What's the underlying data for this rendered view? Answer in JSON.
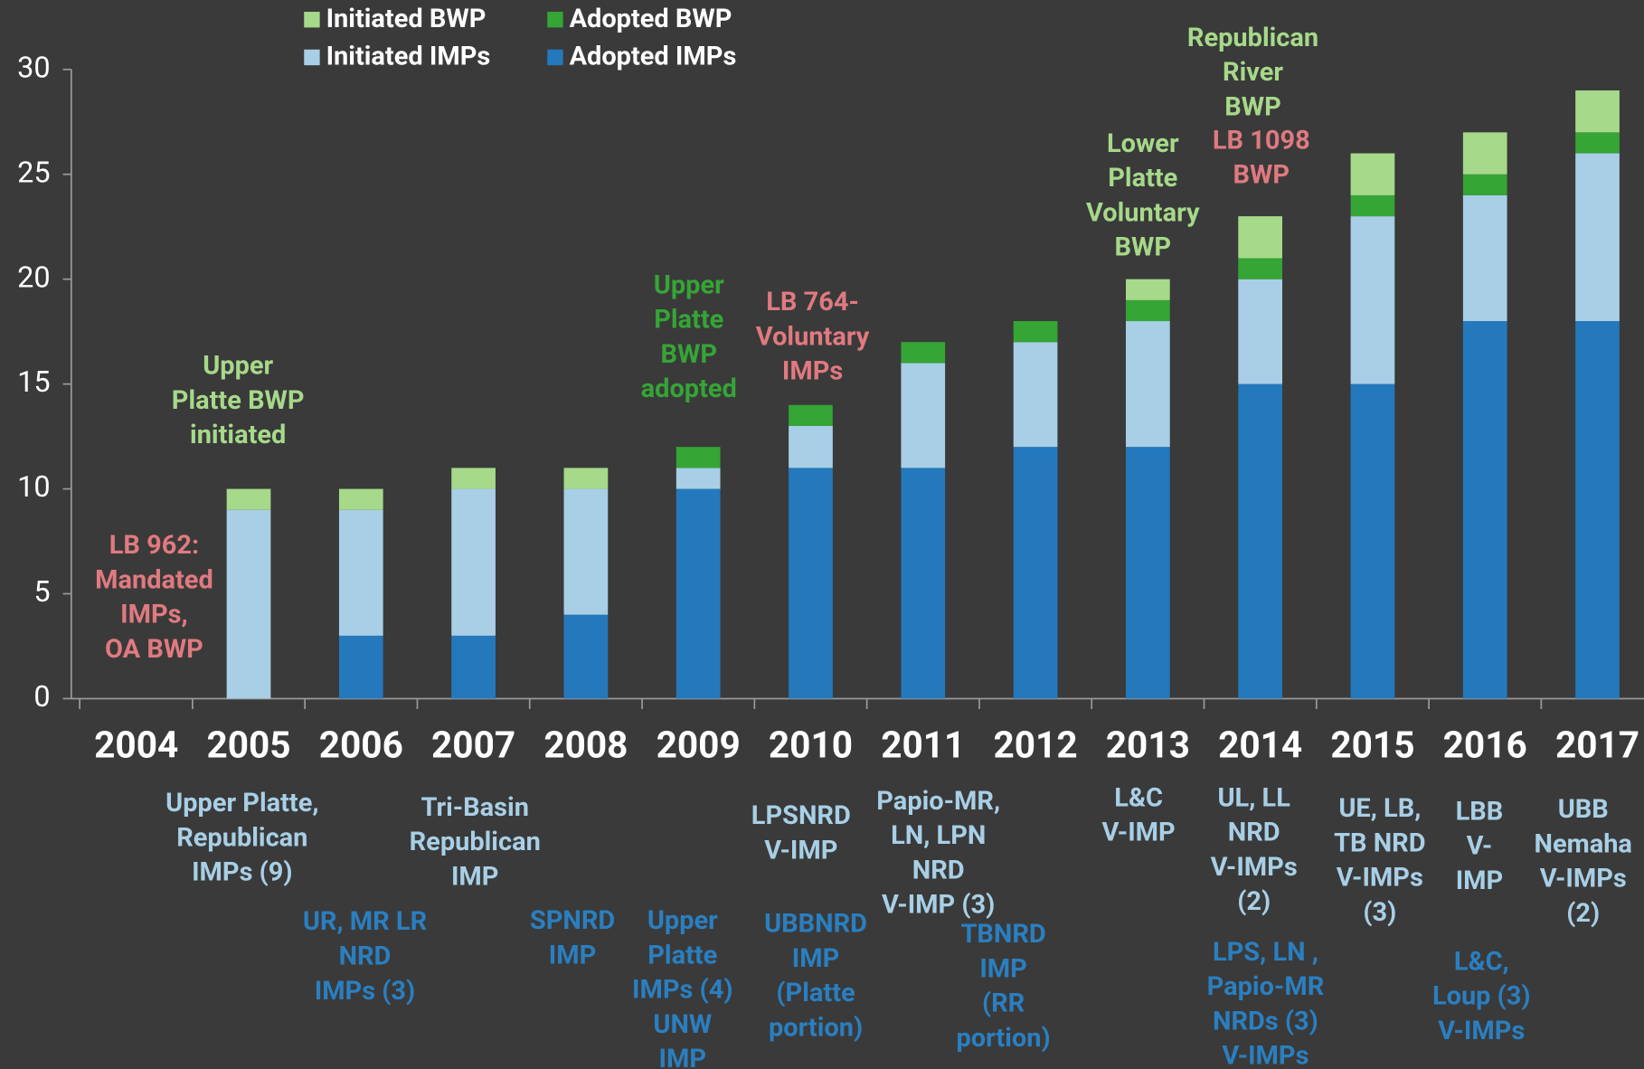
{
  "chart_data": {
    "type": "bar",
    "stacked": true,
    "categories": [
      "2004",
      "2005",
      "2006",
      "2007",
      "2008",
      "2009",
      "2010",
      "2011",
      "2012",
      "2013",
      "2014",
      "2015",
      "2016",
      "2017"
    ],
    "series": [
      {
        "name": "Adopted IMPs",
        "color": "#2479bd",
        "values": [
          0,
          0,
          3,
          3,
          4,
          10,
          11,
          11,
          12,
          12,
          15,
          15,
          18,
          18
        ]
      },
      {
        "name": "Initiated IMPs",
        "color": "#a8cfe6",
        "values": [
          0,
          9,
          6,
          7,
          6,
          1,
          2,
          5,
          5,
          6,
          5,
          8,
          6,
          8
        ]
      },
      {
        "name": "Adopted BWP",
        "color": "#35a535",
        "values": [
          0,
          0,
          0,
          0,
          0,
          1,
          1,
          1,
          1,
          1,
          1,
          1,
          1,
          1
        ]
      },
      {
        "name": "Initiated BWP",
        "color": "#a6d98a",
        "values": [
          0,
          1,
          1,
          1,
          1,
          0,
          0,
          0,
          0,
          1,
          2,
          2,
          2,
          2
        ]
      }
    ],
    "ylim": [
      0,
      30
    ],
    "yticks": [
      0,
      5,
      10,
      15,
      20,
      25,
      30
    ],
    "grid": false,
    "annotations": [
      {
        "lines": [
          "Upper",
          "Platte BWP",
          "initiated"
        ],
        "color": "#a6d98a"
      },
      {
        "lines": [
          "LB 962:",
          "Mandated",
          "IMPs,",
          "OA BWP"
        ],
        "color": "#e07a80"
      },
      {
        "lines": [
          "Upper",
          "Platte",
          "BWP",
          "adopted"
        ],
        "color": "#35a535"
      },
      {
        "lines": [
          "LB 764-",
          "Voluntary",
          "IMPs"
        ],
        "color": "#e07a80"
      },
      {
        "lines": [
          "Lower",
          "Platte",
          "Voluntary",
          "BWP"
        ],
        "color": "#a6d98a"
      },
      {
        "lines": [
          "Republican",
          "River",
          "BWP"
        ],
        "color": "#a6d98a"
      },
      {
        "lines": [
          "LB 1098",
          "BWP"
        ],
        "color": "#e07a80"
      },
      {
        "lines": [
          "Upper Platte,",
          "Republican",
          "IMPs (9)"
        ],
        "color": "#a8cfe6"
      },
      {
        "lines": [
          "UR, MR LR",
          "NRD",
          "IMPs (3)"
        ],
        "color": "#2a7fc0"
      },
      {
        "lines": [
          "Tri-Basin",
          "Republican",
          "IMP"
        ],
        "color": "#a8cfe6"
      },
      {
        "lines": [
          "SPNRD",
          "IMP"
        ],
        "color": "#2a7fc0"
      },
      {
        "lines": [
          "Upper",
          "Platte",
          "IMPs (4)",
          "UNW",
          "IMP"
        ],
        "color": "#2a7fc0"
      },
      {
        "lines": [
          "LPSNRD",
          "V-IMP"
        ],
        "color": "#a8cfe6"
      },
      {
        "lines": [
          "UBBNRD",
          "IMP",
          "(Platte",
          "portion)"
        ],
        "color": "#2a7fc0"
      },
      {
        "lines": [
          "Papio-MR,",
          "LN, LPN",
          "NRD",
          "V-IMP (3)"
        ],
        "color": "#a8cfe6"
      },
      {
        "lines": [
          "TBNRD",
          "IMP",
          "(RR",
          "portion)"
        ],
        "color": "#2a7fc0"
      },
      {
        "lines": [
          "L&C",
          "V-IMP"
        ],
        "color": "#a8cfe6"
      },
      {
        "lines": [
          "UL, LL",
          "NRD",
          "V-IMPs",
          "(2)"
        ],
        "color": "#a8cfe6"
      },
      {
        "lines": [
          "LPS, LN ,",
          "Papio-MR",
          "NRDs (3)",
          "V-IMPs"
        ],
        "color": "#2a7fc0"
      },
      {
        "lines": [
          "UE, LB,",
          "TB NRD",
          "V-IMPs",
          "(3)"
        ],
        "color": "#a8cfe6"
      },
      {
        "lines": [
          "LBB",
          "V-",
          "IMP"
        ],
        "color": "#a8cfe6"
      },
      {
        "lines": [
          "L&C,",
          "Loup (3)",
          "V-IMPs"
        ],
        "color": "#2a7fc0"
      },
      {
        "lines": [
          "UBB",
          "Nemaha",
          "V-IMPs",
          "(2)"
        ],
        "color": "#a8cfe6"
      }
    ]
  }
}
